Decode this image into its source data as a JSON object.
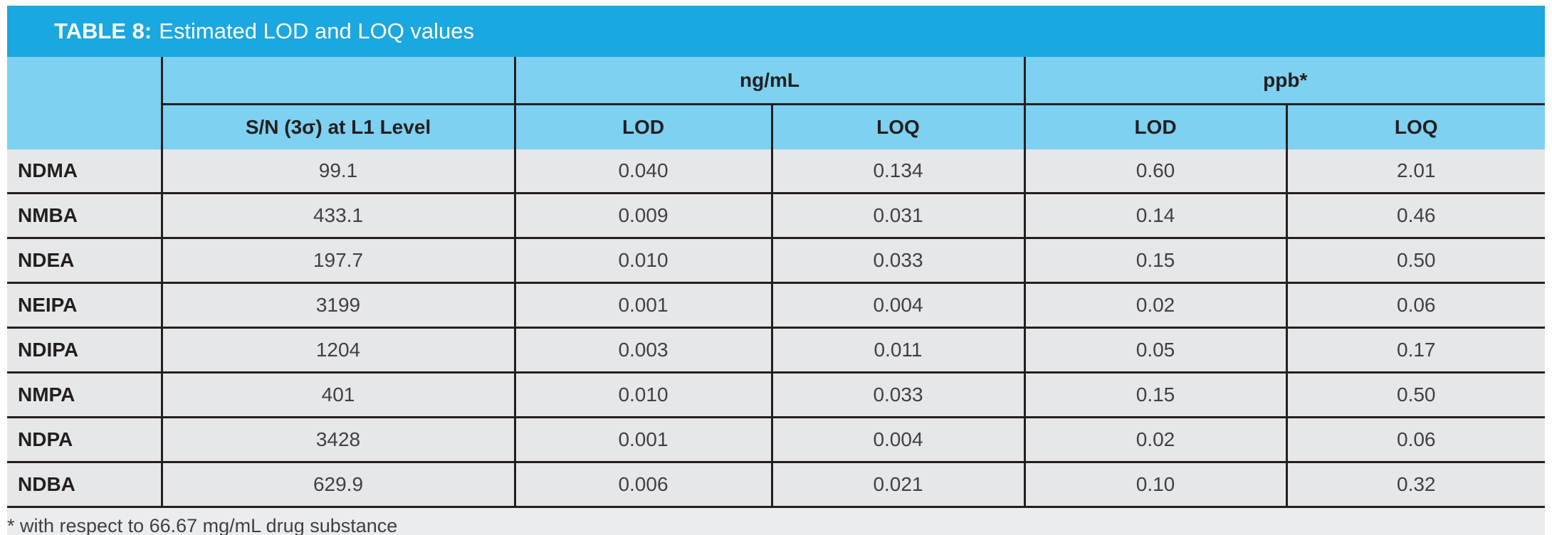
{
  "title": {
    "label": "TABLE 8:",
    "caption": "Estimated LOD and LOQ values"
  },
  "table": {
    "groups": [
      "ng/mL",
      "ppb*"
    ],
    "headers": {
      "sn": "S/N (3σ) at L1 Level",
      "ng_lod": "LOD",
      "ng_loq": "LOQ",
      "ppb_lod": "LOD",
      "ppb_loq": "LOQ"
    },
    "rows": [
      {
        "name": "NDMA",
        "sn": "99.1",
        "ng_lod": "0.040",
        "ng_loq": "0.134",
        "ppb_lod": "0.60",
        "ppb_loq": "2.01"
      },
      {
        "name": "NMBA",
        "sn": "433.1",
        "ng_lod": "0.009",
        "ng_loq": "0.031",
        "ppb_lod": "0.14",
        "ppb_loq": "0.46"
      },
      {
        "name": "NDEA",
        "sn": "197.7",
        "ng_lod": "0.010",
        "ng_loq": "0.033",
        "ppb_lod": "0.15",
        "ppb_loq": "0.50"
      },
      {
        "name": "NEIPA",
        "sn": "3199",
        "ng_lod": "0.001",
        "ng_loq": "0.004",
        "ppb_lod": "0.02",
        "ppb_loq": "0.06"
      },
      {
        "name": "NDIPA",
        "sn": "1204",
        "ng_lod": "0.003",
        "ng_loq": "0.011",
        "ppb_lod": "0.05",
        "ppb_loq": "0.17"
      },
      {
        "name": "NMPA",
        "sn": "401",
        "ng_lod": "0.010",
        "ng_loq": "0.033",
        "ppb_lod": "0.15",
        "ppb_loq": "0.50"
      },
      {
        "name": "NDPA",
        "sn": "3428",
        "ng_lod": "0.001",
        "ng_loq": "0.004",
        "ppb_lod": "0.02",
        "ppb_loq": "0.06"
      },
      {
        "name": "NDBA",
        "sn": "629.9",
        "ng_lod": "0.006",
        "ng_loq": "0.021",
        "ppb_lod": "0.10",
        "ppb_loq": "0.32"
      }
    ],
    "footnote": "* with respect to 66.67 mg/mL drug substance"
  },
  "colors": {
    "title_bar": "#1ba7e0",
    "header_band": "#7ed1f0",
    "row_bg": "#e6e7e8",
    "footnote_bg": "#ebeced",
    "border": "#231f20",
    "title_text": "#ffffff",
    "data_text": "#414042"
  },
  "chart_data": {
    "type": "table",
    "title": "TABLE 8: Estimated LOD and LOQ values",
    "columns": [
      "",
      "S/N (3σ) at L1 Level",
      "ng/mL LOD",
      "ng/mL LOQ",
      "ppb* LOD",
      "ppb* LOQ"
    ],
    "rows": [
      [
        "NDMA",
        "99.1",
        "0.040",
        "0.134",
        "0.60",
        "2.01"
      ],
      [
        "NMBA",
        "433.1",
        "0.009",
        "0.031",
        "0.14",
        "0.46"
      ],
      [
        "NDEA",
        "197.7",
        "0.010",
        "0.033",
        "0.15",
        "0.50"
      ],
      [
        "NEIPA",
        "3199",
        "0.001",
        "0.004",
        "0.02",
        "0.06"
      ],
      [
        "NDIPA",
        "1204",
        "0.003",
        "0.011",
        "0.05",
        "0.17"
      ],
      [
        "NMPA",
        "401",
        "0.010",
        "0.033",
        "0.15",
        "0.50"
      ],
      [
        "NDPA",
        "3428",
        "0.001",
        "0.004",
        "0.02",
        "0.06"
      ],
      [
        "NDBA",
        "629.9",
        "0.006",
        "0.021",
        "0.10",
        "0.32"
      ]
    ],
    "footnote": "* with respect to 66.67 mg/mL drug substance"
  }
}
